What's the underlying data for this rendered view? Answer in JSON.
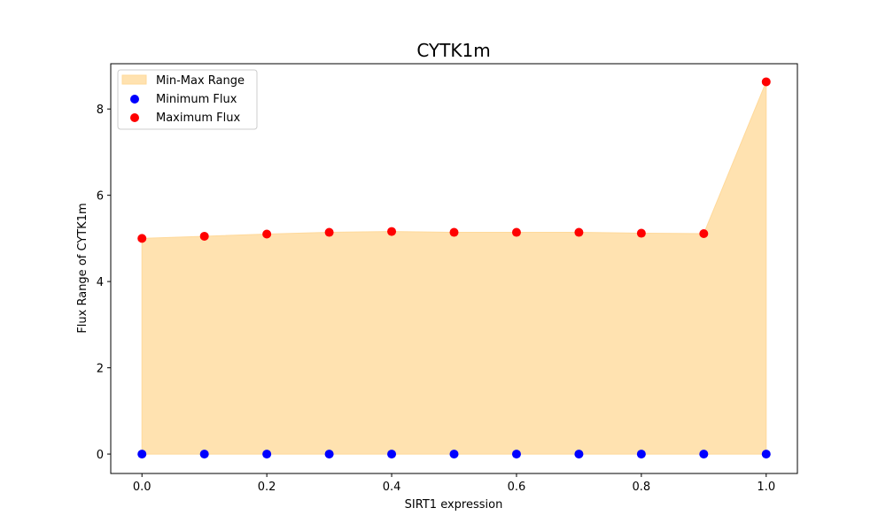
{
  "chart_data": {
    "type": "scatter",
    "title": "CYTK1m",
    "xlabel": "SIRT1 expression",
    "ylabel": "Flux Range of CYTK1m",
    "xlim": [
      -0.05,
      1.05
    ],
    "ylim": [
      -0.45,
      9.05
    ],
    "x_ticks": [
      0.0,
      0.2,
      0.4,
      0.6,
      0.8,
      1.0
    ],
    "x_tick_labels": [
      "0.0",
      "0.2",
      "0.4",
      "0.6",
      "0.8",
      "1.0"
    ],
    "y_ticks": [
      0,
      2,
      4,
      6,
      8
    ],
    "y_tick_labels": [
      "0",
      "2",
      "4",
      "6",
      "8"
    ],
    "grid": false,
    "legend_position": "top-left",
    "x": [
      0.0,
      0.1,
      0.2,
      0.3,
      0.4,
      0.5,
      0.6,
      0.7,
      0.8,
      0.9,
      1.0
    ],
    "series": [
      {
        "name": "Min-Max Range",
        "kind": "fill_between",
        "color": "#ffe2b0",
        "edge_color": "#ffd99a"
      },
      {
        "name": "Minimum Flux",
        "kind": "scatter",
        "color": "#0000ff",
        "values": [
          0,
          0,
          0,
          0,
          0,
          0,
          0,
          0,
          0,
          0,
          0
        ]
      },
      {
        "name": "Maximum Flux",
        "kind": "scatter",
        "color": "#ff0000",
        "values": [
          5.0,
          5.05,
          5.1,
          5.14,
          5.16,
          5.14,
          5.14,
          5.14,
          5.12,
          5.11,
          8.63
        ]
      }
    ]
  }
}
